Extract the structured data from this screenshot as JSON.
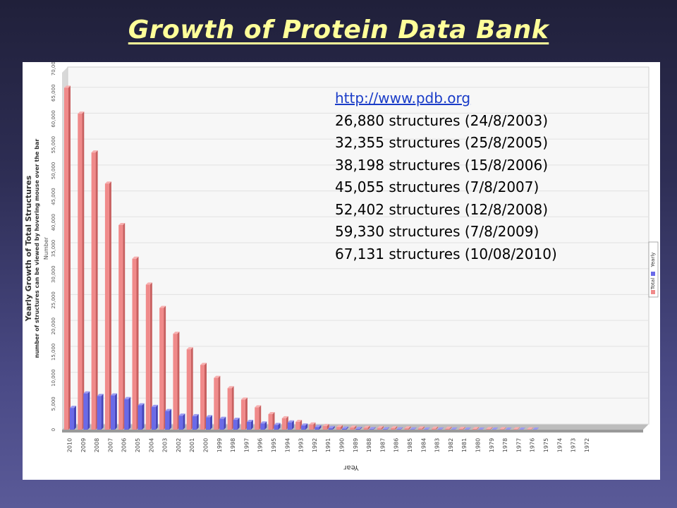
{
  "slide": {
    "title": "Growth of Protein Data Bank"
  },
  "info": {
    "link": "http://www.pdb.org",
    "lines": [
      "26,880 structures (24/8/2003)",
      "32,355 structures (25/8/2005)",
      "38,198 structures (15/8/2006)",
      "45,055 structures (7/8/2007)",
      "52,402 structures (12/8/2008)",
      "59,330 structures (7/8/2009)",
      "67,131 structures (10/08/2010)"
    ]
  },
  "colors": {
    "total": "#f08a8a",
    "yearly": "#6a6ae8",
    "title": "#ffff99"
  },
  "chart_data": {
    "type": "bar",
    "title": "Yearly Growth of Total Structures",
    "subtitle": "number of structures can be viewed by hovering mouse over the bar",
    "xlabel": "Year",
    "ylabel": "Number",
    "ylim": [
      0,
      70000
    ],
    "y_ticks": [
      "0",
      "5,000",
      "10,000",
      "15,000",
      "20,000",
      "25,000",
      "30,000",
      "35,000",
      "40,000",
      "45,000",
      "50,000",
      "55,000",
      "60,000",
      "65,000",
      "70,000"
    ],
    "legend_position": "right",
    "categories": [
      "2010",
      "2009",
      "2008",
      "2007",
      "2006",
      "2005",
      "2004",
      "2003",
      "2002",
      "2001",
      "2000",
      "1999",
      "1998",
      "1997",
      "1996",
      "1995",
      "1994",
      "1993",
      "1992",
      "1991",
      "1990",
      "1989",
      "1988",
      "1987",
      "1986",
      "1985",
      "1984",
      "1983",
      "1982",
      "1981",
      "1980",
      "1979",
      "1978",
      "1977",
      "1976",
      "1975",
      "1974",
      "1973",
      "1972"
    ],
    "series": [
      {
        "name": "Total",
        "values": [
          66000,
          61000,
          53500,
          47500,
          39500,
          33000,
          28000,
          23500,
          18500,
          15500,
          12500,
          10000,
          8000,
          5800,
          4300,
          3000,
          2200,
          1500,
          1000,
          700,
          500,
          400,
          350,
          300,
          280,
          250,
          230,
          200,
          180,
          160,
          140,
          120,
          100,
          80,
          60,
          0,
          0,
          0,
          0
        ]
      },
      {
        "name": "Yearly",
        "values": [
          4200,
          7000,
          6500,
          6600,
          5900,
          4700,
          4400,
          3600,
          2700,
          2600,
          2400,
          2100,
          1900,
          1500,
          1200,
          900,
          1400,
          800,
          500,
          300,
          200,
          150,
          100,
          80,
          60,
          50,
          40,
          40,
          30,
          30,
          20,
          20,
          20,
          20,
          20,
          0,
          0,
          0,
          0
        ]
      }
    ]
  }
}
